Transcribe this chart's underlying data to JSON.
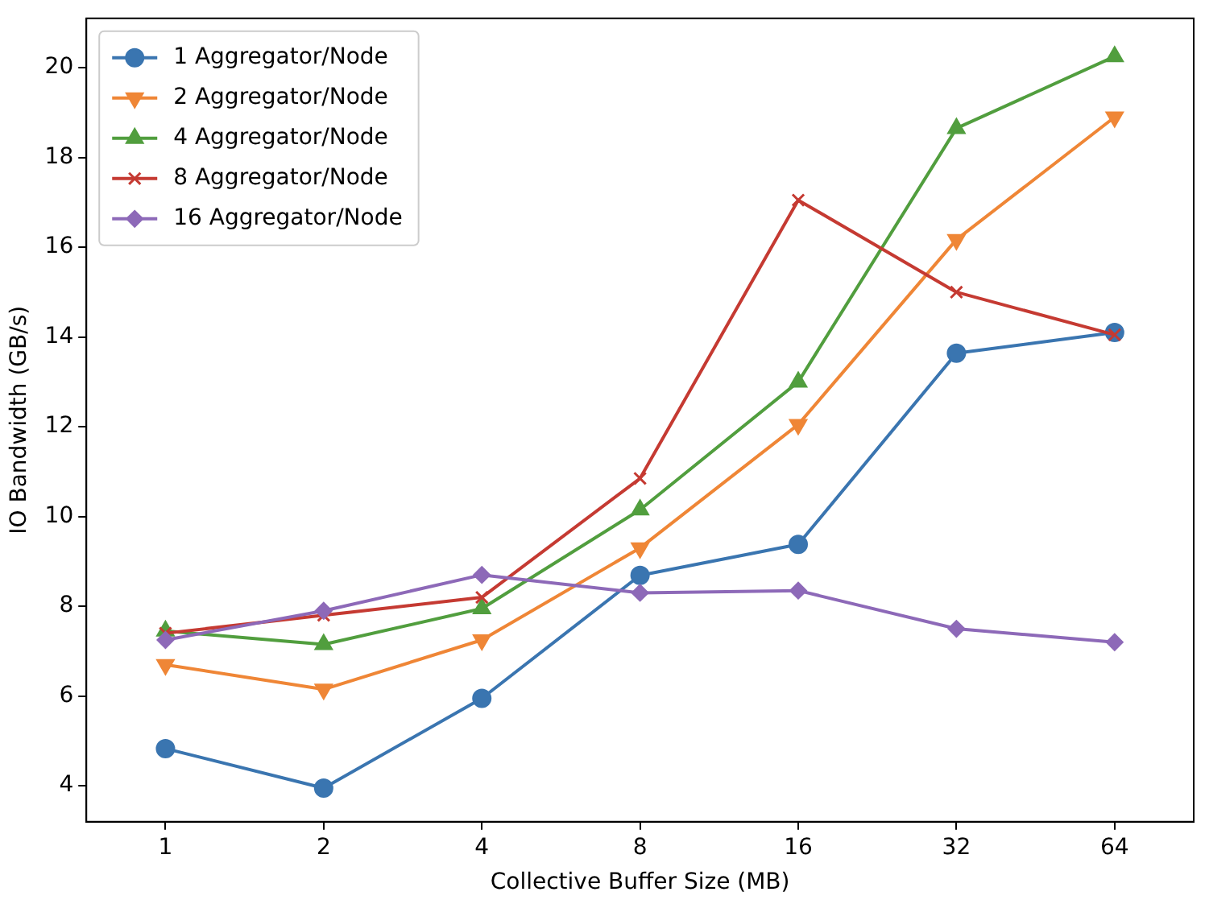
{
  "chart_data": {
    "type": "line",
    "xlabel": "Collective Buffer Size (MB)",
    "ylabel": "IO Bandwidth (GB/s)",
    "categories": [
      "1",
      "2",
      "4",
      "8",
      "16",
      "32",
      "64"
    ],
    "ylim": [
      3.2,
      21.1
    ],
    "yticks": [
      4,
      6,
      8,
      10,
      12,
      14,
      16,
      18,
      20
    ],
    "grid": false,
    "legend": "top left",
    "line_style": "solid",
    "series": [
      {
        "name": "1 Aggregator/Node",
        "color": "#3a75b0",
        "marker": "circle",
        "values": [
          4.83,
          3.95,
          5.95,
          8.69,
          9.38,
          13.64,
          14.1
        ]
      },
      {
        "name": "2 Aggregator/Node",
        "color": "#ef8636",
        "marker": "triangle_down",
        "values": [
          6.7,
          6.15,
          7.25,
          9.3,
          12.05,
          16.17,
          18.9
        ]
      },
      {
        "name": "4 Aggregator/Node",
        "color": "#519e3e",
        "marker": "triangle",
        "values": [
          7.45,
          7.15,
          7.95,
          10.15,
          13.0,
          18.65,
          20.25
        ]
      },
      {
        "name": "8 Aggregator/Node",
        "color": "#c53a32",
        "marker": "cross",
        "values": [
          7.4,
          7.8,
          8.2,
          10.85,
          17.05,
          15.0,
          14.05
        ]
      },
      {
        "name": "16 Aggregator/Node",
        "color": "#8d69b8",
        "marker": "diamond",
        "values": [
          7.25,
          7.9,
          8.7,
          8.3,
          8.35,
          7.5,
          7.2
        ]
      }
    ]
  }
}
